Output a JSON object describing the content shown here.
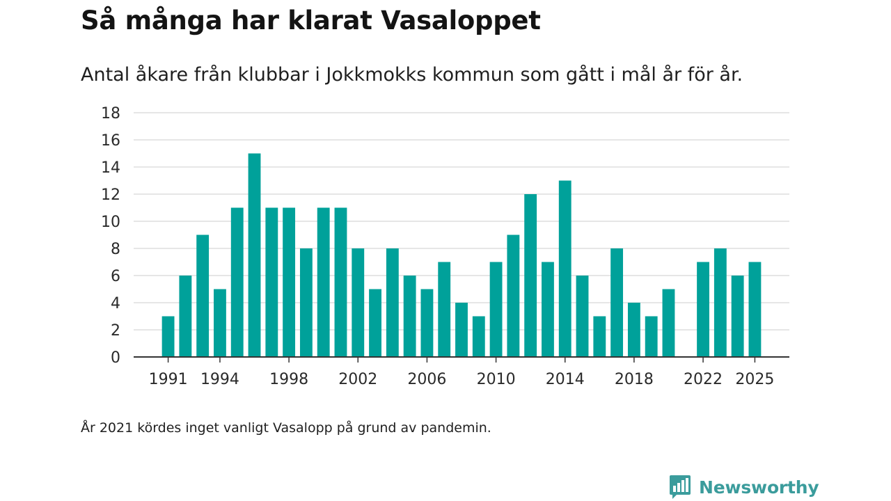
{
  "header": {
    "title": "Så många har klarat Vasaloppet",
    "subtitle": "Antal åkare från klubbar i Jokkmokks kommun som gått i mål år för år."
  },
  "footnote": "År 2021 kördes inget vanligt Vasalopp på grund av pandemin.",
  "brand": {
    "name": "Newsworthy",
    "color": "#3b9c9c"
  },
  "colors": {
    "bar": "#00a19a",
    "grid": "#dddddd",
    "axis": "#333333",
    "text": "#2a2a2a"
  },
  "chart_data": {
    "type": "bar",
    "title": "Så många har klarat Vasaloppet",
    "xlabel": "",
    "ylabel": "",
    "ylim": [
      0,
      18
    ],
    "yticks": [
      0,
      2,
      4,
      6,
      8,
      10,
      12,
      14,
      16,
      18
    ],
    "xlim": [
      1989,
      2027
    ],
    "xticks": [
      1991,
      1994,
      1998,
      2002,
      2006,
      2010,
      2014,
      2018,
      2022,
      2025
    ],
    "grid": true,
    "legend": "none",
    "x": [
      1991,
      1992,
      1993,
      1994,
      1995,
      1996,
      1997,
      1998,
      1999,
      2000,
      2001,
      2002,
      2003,
      2004,
      2005,
      2006,
      2007,
      2008,
      2009,
      2010,
      2011,
      2012,
      2013,
      2014,
      2015,
      2016,
      2017,
      2018,
      2019,
      2020,
      2022,
      2023,
      2024,
      2025
    ],
    "values": [
      3,
      6,
      9,
      5,
      11,
      15,
      11,
      11,
      8,
      11,
      11,
      8,
      5,
      8,
      6,
      5,
      7,
      4,
      3,
      7,
      9,
      12,
      7,
      13,
      6,
      3,
      8,
      4,
      3,
      5,
      7,
      8,
      6,
      7
    ]
  }
}
